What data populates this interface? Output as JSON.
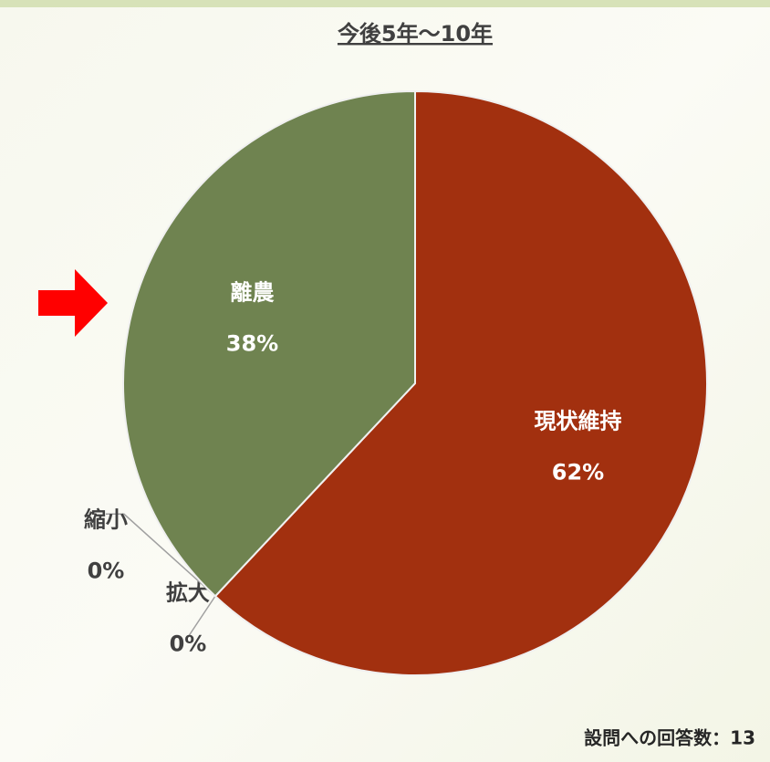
{
  "chart_data": {
    "type": "pie",
    "title": "今後5年～10年",
    "categories": [
      "現状維持",
      "拡大",
      "縮小",
      "離農"
    ],
    "values": [
      62,
      0,
      0,
      38
    ],
    "value_labels": [
      "62%",
      "0%",
      "0%",
      "38%"
    ],
    "colors": [
      "#a2300f",
      "#b0b0b0",
      "#8a8a8a",
      "#6f8350"
    ],
    "note": "設問への回答数：13"
  }
}
